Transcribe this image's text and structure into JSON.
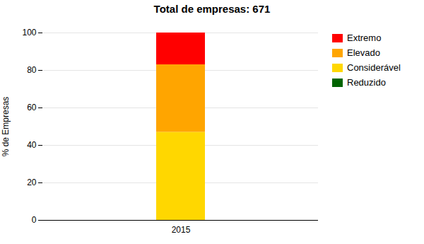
{
  "chart_data": {
    "type": "bar",
    "stacked": true,
    "title": "Total de empresas: 671",
    "ylabel": "% de Empresas",
    "categories": [
      "2015"
    ],
    "series": [
      {
        "name": "Considerável",
        "color": "#FFD700",
        "values": [
          47.0
        ]
      },
      {
        "name": "Elevado",
        "color": "#FFA500",
        "values": [
          36.0
        ]
      },
      {
        "name": "Extremo",
        "color": "#FF0000",
        "values": [
          17.0
        ]
      },
      {
        "name": "Reduzido",
        "color": "#006400",
        "values": [
          0.0
        ]
      }
    ],
    "legend": "right",
    "legend_order": [
      "Extremo",
      "Elevado",
      "Considerável",
      "Reduzido"
    ],
    "ylim": [
      0,
      100
    ],
    "yticks": [
      0,
      20,
      40,
      60,
      80,
      100
    ],
    "grid": true
  }
}
